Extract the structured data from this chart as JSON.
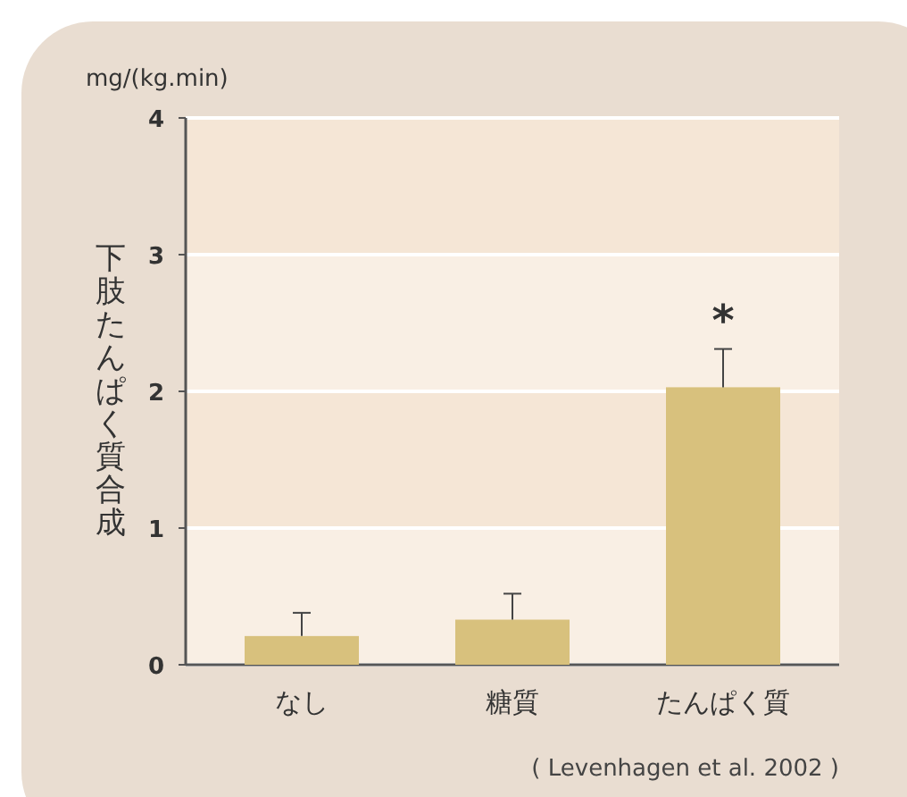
{
  "chart_data": {
    "type": "bar",
    "ylabel": "下肢たんぱく質合成",
    "subtitle": "mg/(kg.min)",
    "categories": [
      "なし",
      "糖質",
      "たんぱく質"
    ],
    "values": [
      0.21,
      0.33,
      2.03
    ],
    "errors": [
      [
        0.21,
        0.38
      ],
      [
        0.33,
        0.52
      ],
      [
        2.03,
        2.31
      ]
    ],
    "color": "#d8c17d",
    "ylim": [
      0,
      4
    ],
    "yticks": [
      0,
      1,
      2,
      3,
      4
    ],
    "grid": "y",
    "annotations": [
      "*",
      "( Levenhagen et al. 2002 )"
    ]
  }
}
